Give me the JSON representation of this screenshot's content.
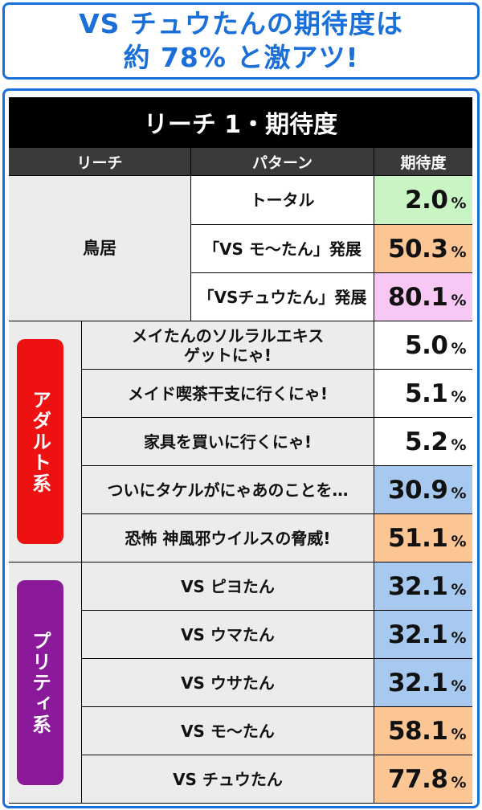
{
  "headline": {
    "line1": "VS チュウたんの期待度は",
    "line2": "約 78% と激アツ!"
  },
  "table": {
    "title": "リーチ 1・期待度",
    "headers": {
      "reach": "リーチ",
      "pattern": "パターン",
      "expectation": "期待度"
    },
    "torii": {
      "label": "鳥居",
      "rows": [
        {
          "pattern": "トータル",
          "value": "2.0",
          "color": "#c9f5c4"
        },
        {
          "pattern": "「VS モ〜たん」発展",
          "value": "50.3",
          "color": "#fbc594"
        },
        {
          "pattern": "「VSチュウたん」発展",
          "value": "80.1",
          "color": "#f8c8f4"
        }
      ]
    },
    "adult": {
      "label": "アダルト系",
      "color": "#ee1111",
      "rows": [
        {
          "pattern": "メイたんのソルラルエキス\nゲットにゃ!",
          "value": "5.0",
          "color": "#ffffff"
        },
        {
          "pattern": "メイド喫茶干支に行くにゃ!",
          "value": "5.1",
          "color": "#ffffff"
        },
        {
          "pattern": "家具を買いに行くにゃ!",
          "value": "5.2",
          "color": "#ffffff"
        },
        {
          "pattern": "ついにタケルがにゃあのことを…",
          "value": "30.9",
          "color": "#a7c9f0"
        },
        {
          "pattern": "恐怖 神風邪ウイルスの脅威!",
          "value": "51.1",
          "color": "#fbc594"
        }
      ]
    },
    "pretty": {
      "label": "プリティ系",
      "color": "#8a1a9a",
      "rows": [
        {
          "pattern": "VS ピヨたん",
          "value": "32.1",
          "color": "#a7c9f0"
        },
        {
          "pattern": "VS ウマたん",
          "value": "32.1",
          "color": "#a7c9f0"
        },
        {
          "pattern": "VS ウサたん",
          "value": "32.1",
          "color": "#a7c9f0"
        },
        {
          "pattern": "VS モ〜たん",
          "value": "58.1",
          "color": "#fbc594"
        },
        {
          "pattern": "VS チュウたん",
          "value": "77.8",
          "color": "#fbc594"
        }
      ]
    },
    "percent_sign": "%"
  }
}
